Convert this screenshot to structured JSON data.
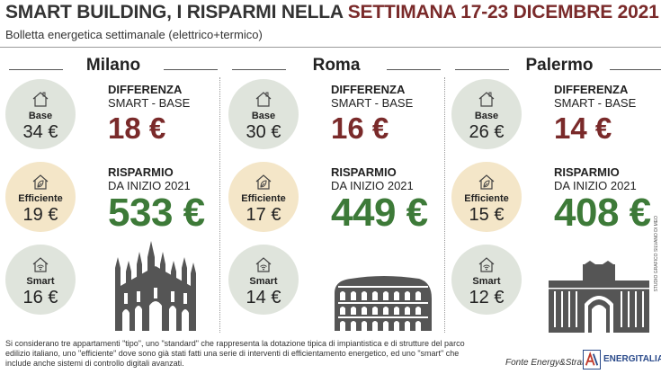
{
  "header": {
    "title_part1": "SMART BUILDING, I RISPARMI NELLA ",
    "title_part2": "SETTIMANA 17-23 DICEMBRE 2021",
    "subtitle": "Bolletta energetica settimanale (elettrico+termico)"
  },
  "labels": {
    "base": "Base",
    "efficient": "Efficiente",
    "smart": "Smart",
    "diff_h1": "DIFFERENZA",
    "diff_h2": "SMART - BASE",
    "save_h1": "RISPARMIO",
    "save_h2": "DA INIZIO 2021"
  },
  "cities": [
    {
      "name": "Milano",
      "base": "34 €",
      "efficient": "19 €",
      "smart": "16 €",
      "difference": "18 €",
      "saving": "533 €",
      "landmark": "duomo-icon"
    },
    {
      "name": "Roma",
      "base": "30 €",
      "efficient": "17 €",
      "smart": "14 €",
      "difference": "16 €",
      "saving": "449 €",
      "landmark": "colosseum-icon"
    },
    {
      "name": "Palermo",
      "base": "26 €",
      "efficient": "15 €",
      "smart": "12 €",
      "difference": "14 €",
      "saving": "408 €",
      "landmark": "teatro-politeama-icon"
    }
  ],
  "credit": "STUDIO GRAFICO SILVANO DI MEO",
  "footer": {
    "note": "Si considerano tre appartamenti \"tipo\", uno \"standard\" che rappresenta la dotazione tipica di impiantistica e di strutture del parco edilizio italiano, uno \"efficiente\" dove sono già stati fatti una serie di interventi di efficientamento energetico, ed uno \"smart\" che include anche sistemi di controllo digitali avanzati.",
    "source": "Fonte Energy&Strategy",
    "brand": "ENERGITALIA"
  },
  "colors": {
    "difference": "#7a2a2a",
    "saving": "#3d7a38",
    "circle_grey": "#dfe4dc",
    "circle_cream": "#f4e6c8"
  }
}
